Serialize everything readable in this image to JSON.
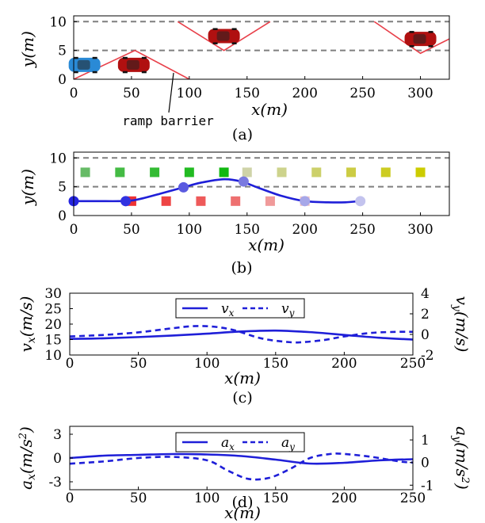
{
  "colors": {
    "lane_dash": "#7f7f7f",
    "barrier": "#e8404a",
    "curve": "#1f1fd8",
    "car_red": "#b01010",
    "car_blue": "#2a8ad6"
  },
  "chart_data": [
    {
      "id": "a",
      "type": "scene",
      "caption": "(a)",
      "xlabel": "x(m)",
      "ylabel": "y(m)",
      "xlim": [
        0,
        325
      ],
      "ylim": [
        0,
        11
      ],
      "xticks": [
        0,
        50,
        100,
        150,
        200,
        250,
        300
      ],
      "yticks": [
        0,
        5,
        10
      ],
      "lane_lines_y": [
        5,
        10
      ],
      "annotation": "ramp barrier",
      "barriers": [
        [
          [
            0,
            0
          ],
          [
            53,
            5
          ],
          [
            100,
            0
          ]
        ],
        [
          [
            90,
            10
          ],
          [
            130,
            5
          ],
          [
            170,
            10
          ]
        ],
        [
          [
            260,
            10
          ],
          [
            300,
            4.5
          ],
          [
            325,
            7
          ]
        ]
      ],
      "cars": [
        {
          "x": 8,
          "y": 2.5,
          "color": "blue"
        },
        {
          "x": 52,
          "y": 2.5,
          "color": "red"
        },
        {
          "x": 130,
          "y": 7.5,
          "color": "red"
        },
        {
          "x": 300,
          "y": 7,
          "color": "red"
        }
      ]
    },
    {
      "id": "b",
      "type": "trajectory",
      "caption": "(b)",
      "xlabel": "x(m)",
      "ylabel": "y(m)",
      "xlim": [
        0,
        325
      ],
      "ylim": [
        0,
        11
      ],
      "xticks": [
        0,
        50,
        100,
        150,
        200,
        250,
        300
      ],
      "yticks": [
        0,
        5,
        10
      ],
      "lane_lines_y": [
        5,
        10
      ],
      "trajectory": [
        [
          0,
          2.5
        ],
        [
          20,
          2.5
        ],
        [
          40,
          2.5
        ],
        [
          50,
          2.6
        ],
        [
          60,
          3.0
        ],
        [
          75,
          3.8
        ],
        [
          95,
          4.9
        ],
        [
          110,
          5.7
        ],
        [
          130,
          6.3
        ],
        [
          145,
          5.9
        ],
        [
          160,
          4.8
        ],
        [
          180,
          3.4
        ],
        [
          200,
          2.5
        ],
        [
          220,
          2.3
        ],
        [
          235,
          2.3
        ],
        [
          248,
          2.5
        ]
      ],
      "markers": [
        {
          "x": 0,
          "y": 2.5,
          "color": "#2525e0"
        },
        {
          "x": 45,
          "y": 2.5,
          "color": "#3232e0"
        },
        {
          "x": 95,
          "y": 4.9,
          "color": "#5a5ae0"
        },
        {
          "x": 147,
          "y": 5.9,
          "color": "#7a7ae0"
        },
        {
          "x": 200,
          "y": 2.5,
          "color": "#a7a7e8"
        },
        {
          "x": 248,
          "y": 2.5,
          "color": "#c3c3ee"
        }
      ],
      "squares_green": [
        {
          "x": 10,
          "y": 7.5,
          "color": "#66bb66"
        },
        {
          "x": 40,
          "y": 7.5,
          "color": "#44bb44"
        },
        {
          "x": 70,
          "y": 7.5,
          "color": "#33bb33"
        },
        {
          "x": 100,
          "y": 7.5,
          "color": "#22bb22"
        },
        {
          "x": 130,
          "y": 7.5,
          "color": "#11b811"
        },
        {
          "x": 150,
          "y": 7.5,
          "color": "#cfd3a8"
        },
        {
          "x": 180,
          "y": 7.5,
          "color": "#cdd38c"
        },
        {
          "x": 210,
          "y": 7.5,
          "color": "#ccd06a"
        },
        {
          "x": 240,
          "y": 7.5,
          "color": "#cccc44"
        },
        {
          "x": 270,
          "y": 7.5,
          "color": "#cccc22"
        },
        {
          "x": 300,
          "y": 7.5,
          "color": "#cccc00"
        }
      ],
      "squares_red": [
        {
          "x": 50,
          "y": 2.5,
          "color": "#ee3333"
        },
        {
          "x": 80,
          "y": 2.5,
          "color": "#ee4444"
        },
        {
          "x": 110,
          "y": 2.5,
          "color": "#ee5a5a"
        },
        {
          "x": 140,
          "y": 2.5,
          "color": "#ee7070"
        },
        {
          "x": 170,
          "y": 2.5,
          "color": "#f09a9a"
        },
        {
          "x": 200,
          "y": 2.5,
          "color": "#f2c2c2"
        }
      ]
    },
    {
      "id": "c",
      "type": "line",
      "caption": "(c)",
      "xlabel": "x(m)",
      "ylabel_left": "vx(m/s)",
      "ylabel_right": "vy(m/s)",
      "xlim": [
        0,
        250
      ],
      "ylim_left": [
        10,
        30
      ],
      "ylim_right": [
        -2,
        4
      ],
      "xticks": [
        0,
        50,
        100,
        150,
        200,
        250
      ],
      "yticks_left": [
        10,
        15,
        20,
        25,
        30
      ],
      "yticks_right": [
        -2,
        0,
        2,
        4
      ],
      "legend": [
        "vx",
        "vy"
      ],
      "series": [
        {
          "name": "vx",
          "axis": "left",
          "style": "solid",
          "x": [
            0,
            25,
            50,
            75,
            100,
            125,
            150,
            175,
            200,
            225,
            250
          ],
          "y": [
            15.2,
            15.4,
            15.8,
            16.3,
            16.9,
            17.6,
            17.9,
            17.4,
            16.5,
            15.6,
            15.0
          ]
        },
        {
          "name": "vy",
          "axis": "right",
          "style": "dashed",
          "x": [
            0,
            25,
            50,
            75,
            90,
            105,
            120,
            140,
            160,
            170,
            185,
            200,
            220,
            240,
            250
          ],
          "y": [
            -0.2,
            -0.05,
            0.2,
            0.6,
            0.8,
            0.75,
            0.4,
            -0.4,
            -0.75,
            -0.75,
            -0.55,
            -0.2,
            0.15,
            0.25,
            0.25
          ]
        }
      ]
    },
    {
      "id": "d",
      "type": "line",
      "caption": "(d)",
      "xlabel": "x(m)",
      "ylabel_left": "ax(m/s2)",
      "ylabel_right": "ay(m/s2)",
      "xlim": [
        0,
        250
      ],
      "ylim_left": [
        -4,
        4
      ],
      "ylim_right": [
        -1.2,
        1.6
      ],
      "xticks": [
        0,
        50,
        100,
        150,
        200,
        250
      ],
      "yticks_left": [
        -3,
        0,
        3
      ],
      "yticks_right": [
        -1,
        0,
        1
      ],
      "legend": [
        "ax",
        "ay"
      ],
      "series": [
        {
          "name": "ax",
          "axis": "left",
          "style": "solid",
          "x": [
            0,
            25,
            50,
            75,
            100,
            125,
            150,
            175,
            200,
            225,
            250
          ],
          "y": [
            0.0,
            0.3,
            0.4,
            0.5,
            0.45,
            0.25,
            -0.2,
            -0.7,
            -0.6,
            -0.3,
            -0.15
          ]
        },
        {
          "name": "ay",
          "axis": "right",
          "style": "dashed",
          "x": [
            0,
            25,
            50,
            75,
            100,
            115,
            130,
            145,
            160,
            175,
            190,
            200,
            220,
            240,
            250
          ],
          "y": [
            -0.05,
            0.05,
            0.2,
            0.25,
            0.1,
            -0.35,
            -0.72,
            -0.68,
            -0.3,
            0.2,
            0.38,
            0.38,
            0.25,
            0.05,
            0.0
          ]
        }
      ]
    }
  ]
}
